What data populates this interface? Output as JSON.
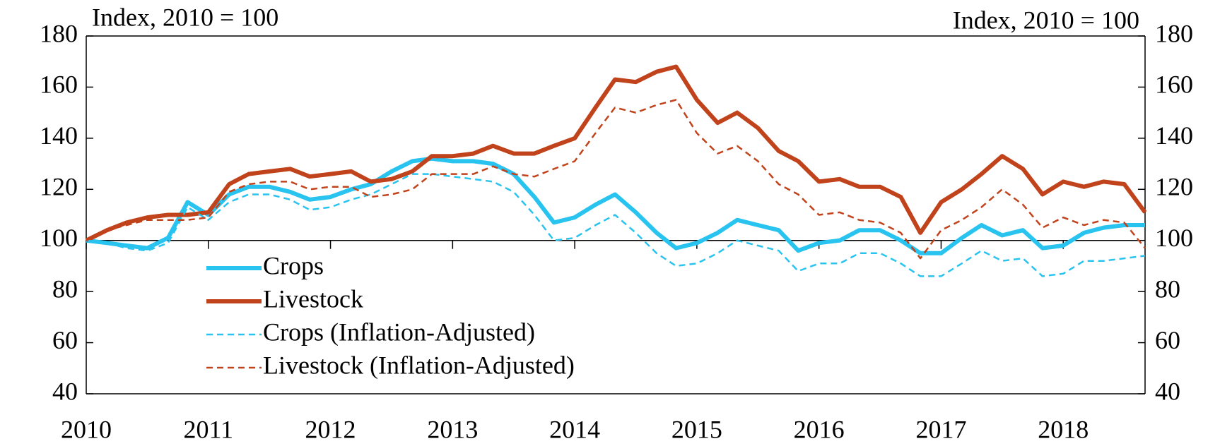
{
  "chart_data": {
    "type": "line",
    "y_label_left": "Index, 2010 = 100",
    "y_label_right": "Index, 2010 = 100",
    "x": [
      2010,
      2010.17,
      2010.33,
      2010.5,
      2010.67,
      2010.83,
      2011,
      2011.17,
      2011.33,
      2011.5,
      2011.67,
      2011.83,
      2012,
      2012.17,
      2012.33,
      2012.5,
      2012.67,
      2012.83,
      2013,
      2013.17,
      2013.33,
      2013.5,
      2013.67,
      2013.83,
      2014,
      2014.17,
      2014.33,
      2014.5,
      2014.67,
      2014.83,
      2015,
      2015.17,
      2015.33,
      2015.5,
      2015.67,
      2015.83,
      2016,
      2016.17,
      2016.33,
      2016.5,
      2016.67,
      2016.83,
      2017,
      2017.17,
      2017.33,
      2017.5,
      2017.67,
      2017.83,
      2018,
      2018.17,
      2018.33,
      2018.5,
      2018.67
    ],
    "series": [
      {
        "name": "Crops",
        "color": "#29c3f0",
        "style": "solid",
        "values": [
          100,
          99,
          98,
          97,
          101,
          115,
          110,
          118,
          121,
          121,
          119,
          116,
          117,
          120,
          122,
          127,
          131,
          132,
          131,
          131,
          130,
          126,
          117,
          107,
          109,
          114,
          118,
          111,
          103,
          97,
          99,
          103,
          108,
          106,
          104,
          96,
          99,
          100,
          104,
          104,
          100,
          95,
          95,
          101,
          106,
          102,
          104,
          97,
          98,
          103,
          105,
          106,
          106
        ]
      },
      {
        "name": "Livestock",
        "color": "#c0431b",
        "style": "solid",
        "values": [
          100,
          104,
          107,
          109,
          110,
          110,
          111,
          122,
          126,
          127,
          128,
          125,
          126,
          127,
          123,
          124,
          127,
          133,
          133,
          134,
          137,
          134,
          134,
          137,
          140,
          152,
          163,
          162,
          166,
          168,
          155,
          146,
          150,
          144,
          135,
          131,
          123,
          124,
          121,
          121,
          117,
          103,
          115,
          120,
          126,
          133,
          128,
          118,
          123,
          121,
          123,
          122,
          111
        ]
      },
      {
        "name": "Crops (Inflation-Adjusted)",
        "color": "#29c3f0",
        "style": "dashed",
        "values": [
          100,
          99,
          97,
          96,
          99,
          113,
          108,
          115,
          118,
          118,
          116,
          112,
          113,
          116,
          118,
          122,
          126,
          126,
          125,
          124,
          123,
          119,
          110,
          100,
          101,
          106,
          110,
          103,
          95,
          90,
          91,
          95,
          100,
          98,
          96,
          88,
          91,
          91,
          95,
          95,
          91,
          86,
          86,
          91,
          96,
          92,
          93,
          86,
          87,
          92,
          92,
          93,
          94
        ]
      },
      {
        "name": "Livestock (Inflation-Adjusted)",
        "color": "#c0431b",
        "style": "dashed",
        "values": [
          100,
          104,
          106,
          108,
          108,
          108,
          109,
          119,
          122,
          123,
          123,
          120,
          121,
          121,
          117,
          118,
          120,
          126,
          126,
          126,
          129,
          126,
          125,
          128,
          131,
          142,
          152,
          150,
          153,
          155,
          142,
          134,
          137,
          131,
          122,
          118,
          110,
          111,
          108,
          107,
          103,
          93,
          104,
          108,
          113,
          120,
          114,
          105,
          109,
          106,
          108,
          107,
          97
        ]
      }
    ],
    "xlim": [
      2010,
      2018.67
    ],
    "xticks": [
      2010,
      2011,
      2012,
      2013,
      2014,
      2015,
      2016,
      2017,
      2018
    ],
    "ylim": [
      40,
      180
    ],
    "yticks": [
      40,
      60,
      80,
      100,
      120,
      140,
      160,
      180
    ],
    "y2lim": [
      40,
      180
    ],
    "y2ticks": [
      40,
      60,
      80,
      100,
      120,
      140,
      160,
      180
    ],
    "reference_line": 100,
    "legend": "left"
  }
}
